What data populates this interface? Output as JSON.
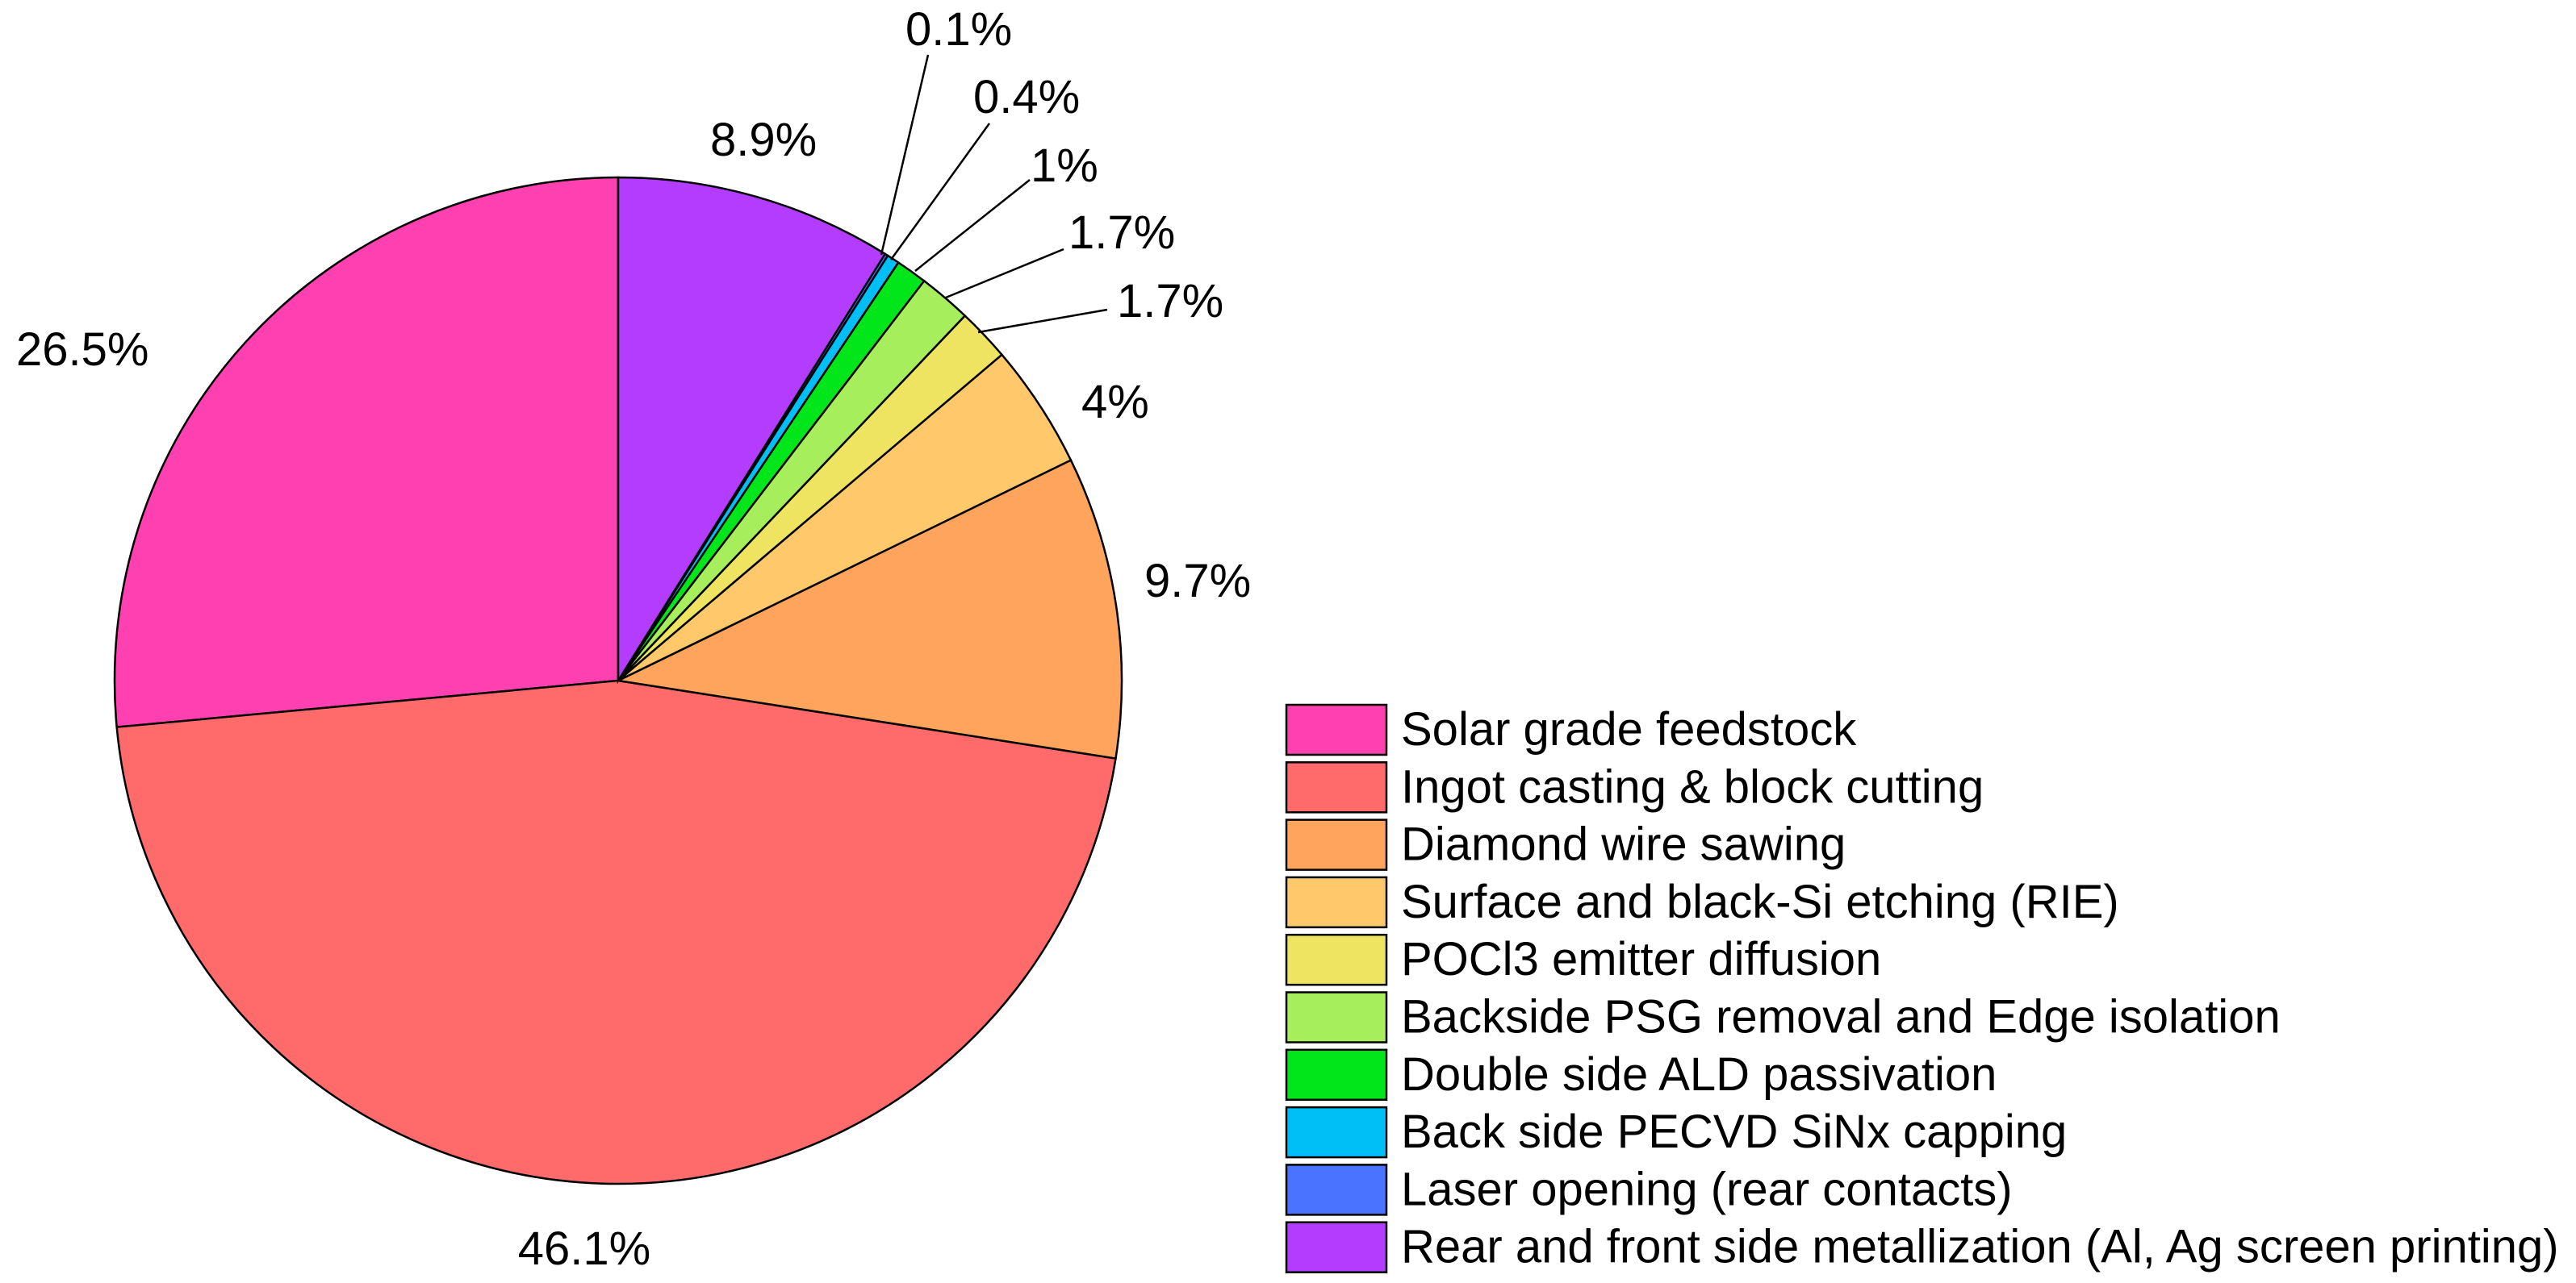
{
  "chart_data": {
    "type": "pie",
    "title": "",
    "unit": "%",
    "start_angle": "12 o'clock, slices proceed counter-clockwise",
    "slices": [
      {
        "name": "Solar grade feedstock",
        "value": 26.5,
        "label": "26.5%",
        "color": "#ff40b0"
      },
      {
        "name": "Ingot casting & block cutting",
        "value": 46.1,
        "label": "46.1%",
        "color": "#ff6b6b"
      },
      {
        "name": "Diamond wire sawing",
        "value": 9.7,
        "label": "9.7%",
        "color": "#ffa45c"
      },
      {
        "name": "Surface and black-Si etching (RIE)",
        "value": 4,
        "label": "4%",
        "color": "#ffc86a"
      },
      {
        "name": "POCl3 emitter diffusion",
        "value": 1.7,
        "label": "1.7%",
        "color": "#efe462"
      },
      {
        "name": "Backside PSG removal and Edge isolation",
        "value": 1.7,
        "label": "1.7%",
        "color": "#a6ee5c"
      },
      {
        "name": "Double side ALD passivation",
        "value": 1,
        "label": "1%",
        "color": "#00e61a"
      },
      {
        "name": "Back side PECVD SiNx capping",
        "value": 0.4,
        "label": "0.4%",
        "color": "#00bff6"
      },
      {
        "name": "Laser opening (rear contacts)",
        "value": 0.1,
        "label": "0.1%",
        "color": "#4a73ff"
      },
      {
        "name": "Rear and front side metallization (Al, Ag screen printing)",
        "value": 8.9,
        "label": "8.9%",
        "color": "#b43cff"
      }
    ],
    "legend_position": "bottom-right"
  }
}
